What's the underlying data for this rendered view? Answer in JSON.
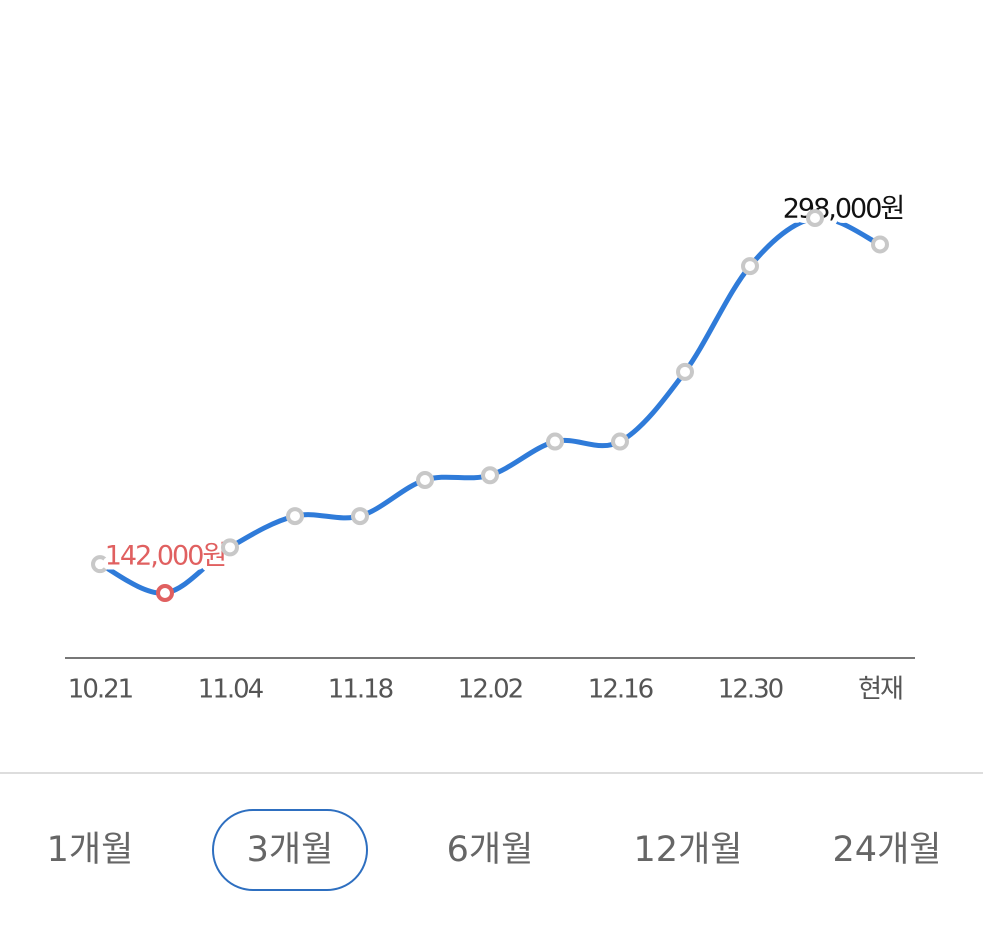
{
  "chart_data": {
    "type": "line",
    "categories": [
      "10.21",
      null,
      "11.04",
      null,
      "11.18",
      null,
      "12.02",
      null,
      "12.16",
      null,
      "12.30",
      null,
      "현재"
    ],
    "series": [
      {
        "color": "#2f7bd9",
        "values": [
          154000,
          142000,
          161000,
          174000,
          174000,
          189000,
          191000,
          205000,
          205000,
          234000,
          278000,
          298000,
          287000
        ],
        "value_labels": [
          null,
          "142,000원",
          null,
          null,
          null,
          null,
          null,
          null,
          null,
          null,
          null,
          "298,000원",
          null
        ]
      }
    ],
    "marker_color": "#c8c8c8",
    "min_color": "#e06060",
    "max_color": "#111111"
  },
  "tabs": {
    "items": [
      "1개월",
      "3개월",
      "6개월",
      "12개월",
      "24개월"
    ],
    "selected": 1
  }
}
